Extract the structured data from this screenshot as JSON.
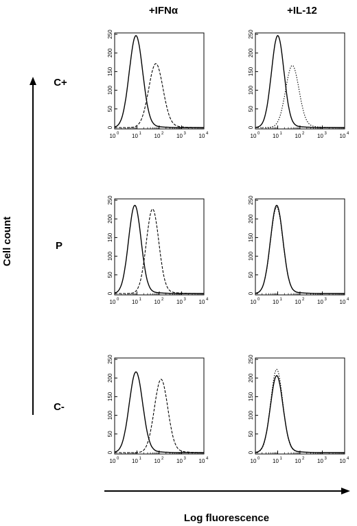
{
  "figure": {
    "column_titles": [
      "+IFNα",
      "+IL-12"
    ],
    "row_labels": [
      "C+",
      "P",
      "C-"
    ],
    "ylabel": "Cell count",
    "xlabel": "Log fluorescence"
  },
  "chart_data": [
    {
      "type": "line",
      "row": "C+",
      "column": "+IFNα",
      "xlim": [
        1,
        10000
      ],
      "ylim": [
        0,
        250
      ],
      "xscale": "log",
      "yticks": [
        0,
        50,
        100,
        150,
        200,
        250
      ],
      "xticks": [
        "10^0",
        "10^1",
        "10^2",
        "10^3",
        "10^4"
      ],
      "series": [
        {
          "style": "solid",
          "peak_x": 9,
          "peak_y": 245,
          "width": 0.3
        },
        {
          "style": "dashed",
          "peak_x": 70,
          "peak_y": 170,
          "width": 0.32
        }
      ]
    },
    {
      "type": "line",
      "row": "C+",
      "column": "+IL-12",
      "xlim": [
        1,
        10000
      ],
      "ylim": [
        0,
        250
      ],
      "xscale": "log",
      "yticks": [
        0,
        50,
        100,
        150,
        200,
        250
      ],
      "xticks": [
        "10^0",
        "10^1",
        "10^2",
        "10^3",
        "10^4"
      ],
      "series": [
        {
          "style": "solid",
          "peak_x": 10,
          "peak_y": 245,
          "width": 0.28
        },
        {
          "style": "dotted",
          "peak_x": 45,
          "peak_y": 165,
          "width": 0.3
        }
      ]
    },
    {
      "type": "line",
      "row": "P",
      "column": "+IFNα",
      "xlim": [
        1,
        10000
      ],
      "ylim": [
        0,
        250
      ],
      "xscale": "log",
      "yticks": [
        0,
        50,
        100,
        150,
        200,
        250
      ],
      "xticks": [
        "10^0",
        "10^1",
        "10^2",
        "10^3",
        "10^4"
      ],
      "series": [
        {
          "style": "solid",
          "peak_x": 8,
          "peak_y": 235,
          "width": 0.28
        },
        {
          "style": "dashed",
          "peak_x": 50,
          "peak_y": 225,
          "width": 0.28
        }
      ]
    },
    {
      "type": "line",
      "row": "P",
      "column": "+IL-12",
      "xlim": [
        1,
        10000
      ],
      "ylim": [
        0,
        250
      ],
      "xscale": "log",
      "yticks": [
        0,
        50,
        100,
        150,
        200,
        250
      ],
      "xticks": [
        "10^0",
        "10^1",
        "10^2",
        "10^3",
        "10^4"
      ],
      "series": [
        {
          "style": "solid",
          "peak_x": 9,
          "peak_y": 235,
          "width": 0.28
        },
        {
          "style": "dotted",
          "peak_x": 9,
          "peak_y": 230,
          "width": 0.28
        }
      ]
    },
    {
      "type": "line",
      "row": "C-",
      "column": "+IFNα",
      "xlim": [
        1,
        10000
      ],
      "ylim": [
        0,
        250
      ],
      "xscale": "log",
      "yticks": [
        0,
        50,
        100,
        150,
        200,
        250
      ],
      "xticks": [
        "10^0",
        "10^1",
        "10^2",
        "10^3",
        "10^4"
      ],
      "series": [
        {
          "style": "solid",
          "peak_x": 9,
          "peak_y": 215,
          "width": 0.3
        },
        {
          "style": "dashed",
          "peak_x": 120,
          "peak_y": 195,
          "width": 0.3
        }
      ]
    },
    {
      "type": "line",
      "row": "C-",
      "column": "+IL-12",
      "xlim": [
        1,
        10000
      ],
      "ylim": [
        0,
        250
      ],
      "xscale": "log",
      "yticks": [
        0,
        50,
        100,
        150,
        200,
        250
      ],
      "xticks": [
        "10^0",
        "10^1",
        "10^2",
        "10^3",
        "10^4"
      ],
      "series": [
        {
          "style": "solid",
          "peak_x": 9,
          "peak_y": 205,
          "width": 0.28
        },
        {
          "style": "dotted",
          "peak_x": 9,
          "peak_y": 222,
          "width": 0.27
        }
      ]
    }
  ]
}
